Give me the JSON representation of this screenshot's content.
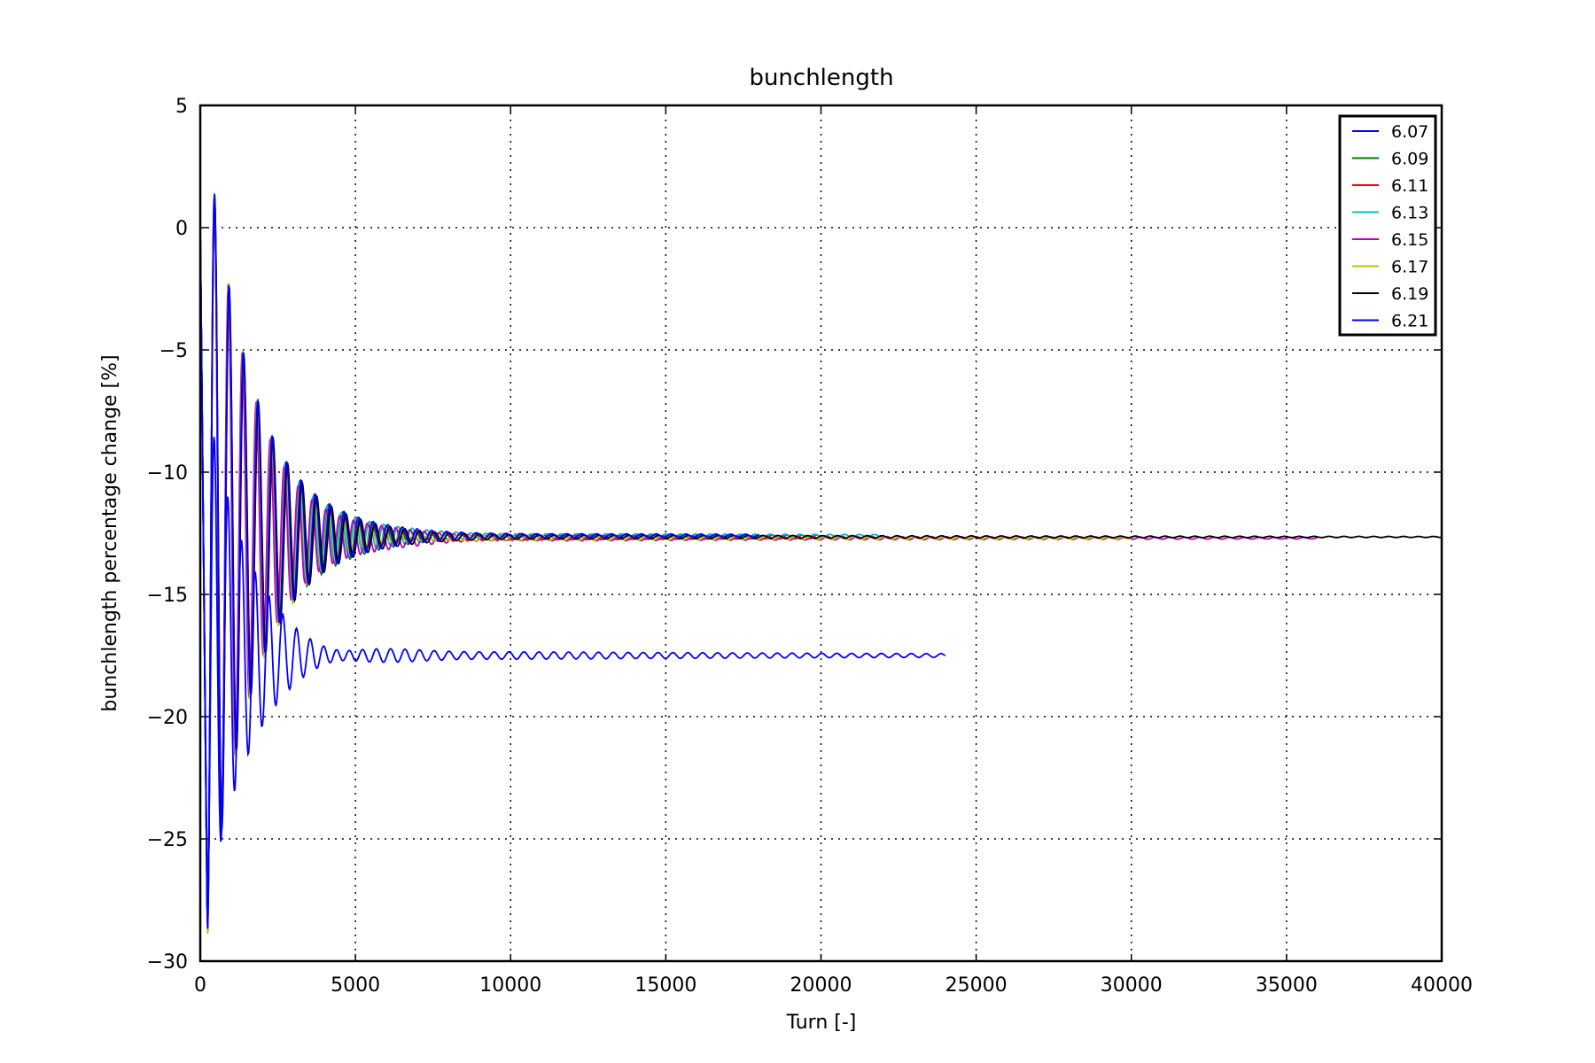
{
  "chart_data": {
    "type": "line",
    "title": "bunchlength",
    "xlabel": "Turn [-]",
    "ylabel": "bunchlength percentage change [%]",
    "xlim": [
      0,
      40000
    ],
    "ylim": [
      -30,
      5
    ],
    "xticks": [
      0,
      5000,
      10000,
      15000,
      20000,
      25000,
      30000,
      35000,
      40000
    ],
    "yticks": [
      5,
      0,
      -5,
      -10,
      -15,
      -20,
      -25,
      -30
    ],
    "grid": true,
    "legend_position": "top-right",
    "series": [
      {
        "name": "6.07",
        "color": "#0000ff",
        "start": -28.0,
        "equilibrium": -17.5,
        "end_turn": 24000,
        "period": 440,
        "decay": 1300,
        "late_amp": 0.25
      },
      {
        "name": "6.09",
        "color": "#008000",
        "start": -28.7,
        "equilibrium": -12.65,
        "end_turn": 18000,
        "period": 460,
        "decay": 1500,
        "late_amp": 0.2
      },
      {
        "name": "6.11",
        "color": "#ff0000",
        "start": -28.8,
        "equilibrium": -12.65,
        "end_turn": 20000,
        "period": 470,
        "decay": 1500,
        "late_amp": 0.2
      },
      {
        "name": "6.13",
        "color": "#00bfbf",
        "start": -28.8,
        "equilibrium": -12.6,
        "end_turn": 22000,
        "period": 455,
        "decay": 1500,
        "late_amp": 0.15
      },
      {
        "name": "6.15",
        "color": "#bf00bf",
        "start": -28.9,
        "equilibrium": -12.7,
        "end_turn": 36000,
        "period": 450,
        "decay": 1500,
        "late_amp": 0.2
      },
      {
        "name": "6.17",
        "color": "#bfbf00",
        "start": -29.0,
        "equilibrium": -12.7,
        "end_turn": 30000,
        "period": 460,
        "decay": 1500,
        "late_amp": 0.15
      },
      {
        "name": "6.19",
        "color": "#000000",
        "start": -28.9,
        "equilibrium": -12.65,
        "end_turn": 40000,
        "period": 470,
        "decay": 1500,
        "late_amp": 0.15
      },
      {
        "name": "6.21",
        "color": "#0000ff",
        "start": -29.0,
        "equilibrium": -12.6,
        "end_turn": 18000,
        "period": 465,
        "decay": 1500,
        "late_amp": 0.15
      }
    ]
  }
}
